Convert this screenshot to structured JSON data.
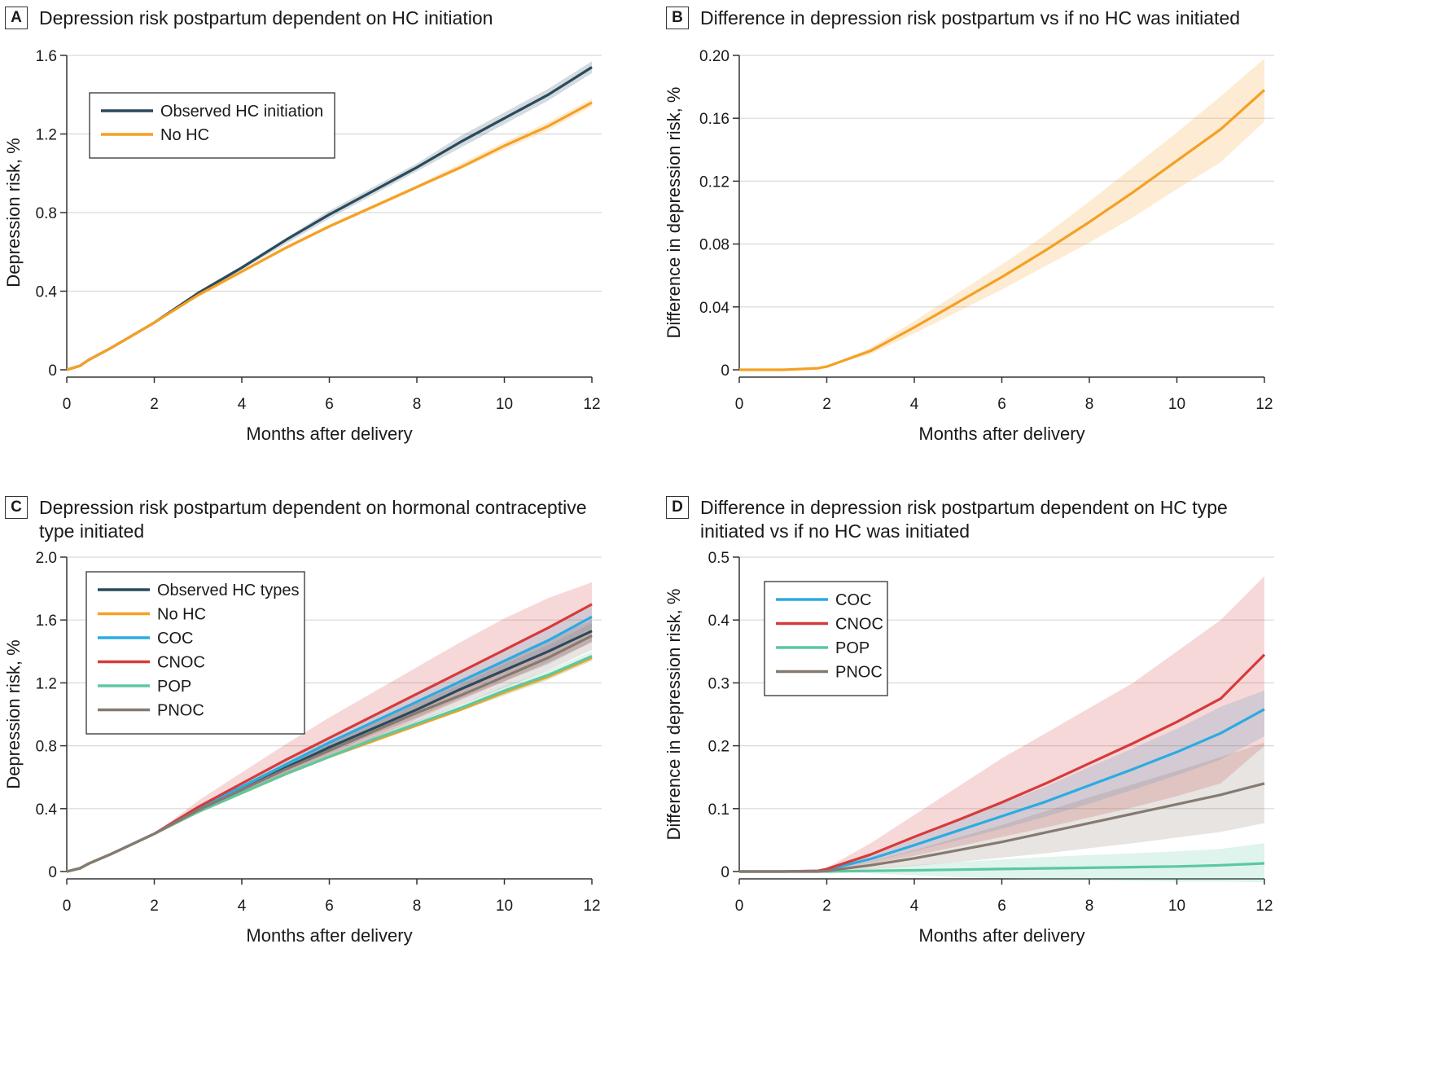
{
  "colors": {
    "observed": "#2a4a5c",
    "no_hc": "#f5a023",
    "coc": "#2aabe2",
    "cnoc": "#d63b3b",
    "pop": "#5cc8a0",
    "pnoc": "#857a70",
    "grid": "#d9d9d9"
  },
  "chart_data": [
    {
      "panel": "A",
      "type": "line",
      "title": "Depression risk postpartum dependent on HC initiation",
      "xlabel": "Months after delivery",
      "ylabel": "Depression risk, %",
      "xlim": [
        0,
        12
      ],
      "ylim": [
        0,
        1.6
      ],
      "xticks": [
        0,
        2,
        4,
        6,
        8,
        10,
        12
      ],
      "yticks": [
        0,
        0.4,
        0.8,
        1.2,
        1.6
      ],
      "ytick_labels": [
        "0",
        "0.4",
        "0.8",
        "1.2",
        "1.6"
      ],
      "grid": true,
      "legend_position": "top-left",
      "x": [
        0,
        0.3,
        0.5,
        1,
        2,
        3,
        4,
        5,
        6,
        7,
        8,
        9,
        10,
        11,
        12
      ],
      "series": [
        {
          "name": "Observed HC initiation",
          "color_key": "observed",
          "values": [
            0,
            0.02,
            0.05,
            0.11,
            0.24,
            0.39,
            0.52,
            0.66,
            0.79,
            0.91,
            1.03,
            1.16,
            1.28,
            1.4,
            1.54
          ],
          "ci_low": [
            0,
            0.02,
            0.05,
            0.11,
            0.24,
            0.38,
            0.51,
            0.64,
            0.77,
            0.89,
            1.01,
            1.13,
            1.25,
            1.37,
            1.51
          ],
          "ci_high": [
            0,
            0.02,
            0.05,
            0.11,
            0.24,
            0.4,
            0.53,
            0.67,
            0.81,
            0.93,
            1.05,
            1.19,
            1.31,
            1.43,
            1.57
          ]
        },
        {
          "name": "No HC",
          "color_key": "no_hc",
          "values": [
            0,
            0.02,
            0.05,
            0.11,
            0.24,
            0.38,
            0.5,
            0.62,
            0.73,
            0.83,
            0.93,
            1.03,
            1.14,
            1.24,
            1.36
          ],
          "ci_low": [
            0,
            0.02,
            0.05,
            0.11,
            0.24,
            0.37,
            0.49,
            0.61,
            0.72,
            0.82,
            0.92,
            1.02,
            1.12,
            1.22,
            1.34
          ],
          "ci_high": [
            0,
            0.02,
            0.05,
            0.11,
            0.24,
            0.39,
            0.51,
            0.63,
            0.74,
            0.84,
            0.94,
            1.05,
            1.16,
            1.26,
            1.38
          ]
        }
      ]
    },
    {
      "panel": "B",
      "type": "line",
      "title": "Difference in depression risk postpartum vs if no HC was initiated",
      "xlabel": "Months after delivery",
      "ylabel": "Difference in depression risk, %",
      "xlim": [
        0,
        12
      ],
      "ylim": [
        0,
        0.2
      ],
      "xticks": [
        0,
        2,
        4,
        6,
        8,
        10,
        12
      ],
      "yticks": [
        0,
        0.04,
        0.08,
        0.12,
        0.16,
        0.2
      ],
      "ytick_labels": [
        "0",
        "0.04",
        "0.08",
        "0.12",
        "0.16",
        "0.20"
      ],
      "grid": true,
      "x": [
        0,
        1,
        1.8,
        2,
        3,
        4,
        5,
        6,
        7,
        8,
        9,
        10,
        11,
        12
      ],
      "series": [
        {
          "name": "",
          "color_key": "no_hc",
          "values": [
            0,
            0,
            0.001,
            0.002,
            0.012,
            0.027,
            0.043,
            0.059,
            0.076,
            0.094,
            0.113,
            0.133,
            0.153,
            0.178
          ],
          "ci_low": [
            0,
            0,
            0.001,
            0.002,
            0.01,
            0.023,
            0.037,
            0.051,
            0.066,
            0.081,
            0.097,
            0.115,
            0.132,
            0.158
          ],
          "ci_high": [
            0,
            0,
            0.001,
            0.002,
            0.014,
            0.031,
            0.049,
            0.067,
            0.086,
            0.107,
            0.129,
            0.151,
            0.174,
            0.198
          ]
        }
      ]
    },
    {
      "panel": "C",
      "type": "line",
      "title": "Depression risk postpartum dependent on hormonal contraceptive\ntype initiated",
      "xlabel": "Months after delivery",
      "ylabel": "Depression risk, %",
      "xlim": [
        0,
        12
      ],
      "ylim": [
        0,
        2.0
      ],
      "xticks": [
        0,
        2,
        4,
        6,
        8,
        10,
        12
      ],
      "yticks": [
        0,
        0.4,
        0.8,
        1.2,
        1.6,
        2.0
      ],
      "ytick_labels": [
        "0",
        "0.4",
        "0.8",
        "1.2",
        "1.6",
        "2.0"
      ],
      "grid": true,
      "legend_position": "top-left",
      "x": [
        0,
        0.3,
        0.5,
        1,
        2,
        3,
        4,
        5,
        6,
        7,
        8,
        9,
        10,
        11,
        12
      ],
      "series": [
        {
          "name": "Observed HC types",
          "color_key": "observed",
          "values": [
            0,
            0.02,
            0.05,
            0.11,
            0.24,
            0.39,
            0.52,
            0.66,
            0.79,
            0.91,
            1.03,
            1.16,
            1.28,
            1.4,
            1.53
          ],
          "ci_low": [
            0,
            0.02,
            0.05,
            0.11,
            0.24,
            0.37,
            0.5,
            0.63,
            0.75,
            0.87,
            0.98,
            1.1,
            1.21,
            1.32,
            1.46
          ],
          "ci_high": [
            0,
            0.02,
            0.05,
            0.11,
            0.24,
            0.41,
            0.54,
            0.69,
            0.83,
            0.95,
            1.08,
            1.22,
            1.35,
            1.48,
            1.6
          ]
        },
        {
          "name": "No HC",
          "color_key": "no_hc",
          "values": [
            0,
            0.02,
            0.05,
            0.11,
            0.24,
            0.38,
            0.5,
            0.62,
            0.73,
            0.83,
            0.93,
            1.03,
            1.14,
            1.24,
            1.36
          ],
          "ci_low": [
            0,
            0.02,
            0.05,
            0.11,
            0.24,
            0.37,
            0.49,
            0.61,
            0.72,
            0.82,
            0.92,
            1.02,
            1.12,
            1.22,
            1.34
          ],
          "ci_high": [
            0,
            0.02,
            0.05,
            0.11,
            0.24,
            0.39,
            0.51,
            0.63,
            0.74,
            0.84,
            0.94,
            1.05,
            1.16,
            1.26,
            1.38
          ]
        },
        {
          "name": "COC",
          "color_key": "coc",
          "values": [
            0,
            0.02,
            0.05,
            0.11,
            0.24,
            0.4,
            0.54,
            0.68,
            0.82,
            0.95,
            1.08,
            1.21,
            1.34,
            1.47,
            1.62
          ],
          "ci_low": [
            0,
            0.02,
            0.05,
            0.11,
            0.24,
            0.38,
            0.52,
            0.65,
            0.78,
            0.91,
            1.03,
            1.16,
            1.28,
            1.4,
            1.55
          ],
          "ci_high": [
            0,
            0.02,
            0.05,
            0.11,
            0.24,
            0.42,
            0.56,
            0.71,
            0.86,
            0.99,
            1.13,
            1.26,
            1.4,
            1.54,
            1.69
          ]
        },
        {
          "name": "CNOC",
          "color_key": "cnoc",
          "values": [
            0,
            0.02,
            0.05,
            0.11,
            0.24,
            0.41,
            0.56,
            0.71,
            0.85,
            0.99,
            1.13,
            1.27,
            1.41,
            1.55,
            1.7
          ],
          "ci_low": [
            0,
            0.02,
            0.05,
            0.11,
            0.24,
            0.37,
            0.49,
            0.61,
            0.73,
            0.85,
            0.97,
            1.09,
            1.21,
            1.33,
            1.46
          ],
          "ci_high": [
            0,
            0.02,
            0.05,
            0.11,
            0.24,
            0.45,
            0.63,
            0.81,
            0.98,
            1.14,
            1.3,
            1.46,
            1.61,
            1.74,
            1.84
          ]
        },
        {
          "name": "POP",
          "color_key": "pop",
          "values": [
            0,
            0.02,
            0.05,
            0.11,
            0.24,
            0.38,
            0.5,
            0.62,
            0.73,
            0.84,
            0.94,
            1.04,
            1.15,
            1.25,
            1.37
          ],
          "ci_low": [
            0,
            0.02,
            0.05,
            0.11,
            0.24,
            0.37,
            0.49,
            0.61,
            0.72,
            0.82,
            0.92,
            1.02,
            1.12,
            1.22,
            1.34
          ],
          "ci_high": [
            0,
            0.02,
            0.05,
            0.11,
            0.24,
            0.39,
            0.51,
            0.63,
            0.75,
            0.86,
            0.96,
            1.06,
            1.18,
            1.28,
            1.4
          ]
        },
        {
          "name": "PNOC",
          "color_key": "pnoc",
          "values": [
            0,
            0.02,
            0.05,
            0.11,
            0.24,
            0.39,
            0.52,
            0.65,
            0.77,
            0.89,
            1.01,
            1.12,
            1.24,
            1.36,
            1.5
          ],
          "ci_low": [
            0,
            0.02,
            0.05,
            0.11,
            0.24,
            0.37,
            0.5,
            0.62,
            0.73,
            0.84,
            0.95,
            1.06,
            1.17,
            1.28,
            1.41
          ],
          "ci_high": [
            0,
            0.02,
            0.05,
            0.11,
            0.24,
            0.41,
            0.54,
            0.68,
            0.81,
            0.94,
            1.07,
            1.19,
            1.32,
            1.44,
            1.58
          ]
        }
      ]
    },
    {
      "panel": "D",
      "type": "line",
      "title": "Difference in depression risk postpartum dependent on HC type\ninitiated vs if no HC was initiated",
      "xlabel": "Months after delivery",
      "ylabel": "Difference in depression risk, %",
      "xlim": [
        0,
        12
      ],
      "ylim": [
        0,
        0.5
      ],
      "xticks": [
        0,
        2,
        4,
        6,
        8,
        10,
        12
      ],
      "yticks": [
        0,
        0.1,
        0.2,
        0.3,
        0.4,
        0.5
      ],
      "ytick_labels": [
        "0",
        "0.1",
        "0.2",
        "0.3",
        "0.4",
        "0.5"
      ],
      "grid": true,
      "legend_position": "top-left",
      "x": [
        0,
        1,
        1.8,
        2,
        3,
        4,
        5,
        6,
        7,
        8,
        9,
        10,
        11,
        12
      ],
      "series": [
        {
          "name": "COC",
          "color_key": "coc",
          "values": [
            0,
            0,
            0.001,
            0.003,
            0.02,
            0.042,
            0.065,
            0.088,
            0.111,
            0.137,
            0.163,
            0.19,
            0.22,
            0.258
          ],
          "ci_low": [
            0,
            0,
            0.001,
            0.002,
            0.015,
            0.032,
            0.05,
            0.068,
            0.087,
            0.108,
            0.13,
            0.153,
            0.178,
            0.215
          ],
          "ci_high": [
            0,
            0,
            0.001,
            0.004,
            0.025,
            0.052,
            0.08,
            0.108,
            0.135,
            0.166,
            0.196,
            0.227,
            0.262,
            0.288
          ]
        },
        {
          "name": "CNOC",
          "color_key": "cnoc",
          "values": [
            0,
            0,
            0.001,
            0.004,
            0.027,
            0.055,
            0.082,
            0.11,
            0.14,
            0.172,
            0.204,
            0.238,
            0.275,
            0.345
          ],
          "ci_low": [
            0,
            0,
            0.001,
            0.002,
            0.012,
            0.025,
            0.04,
            0.055,
            0.07,
            0.086,
            0.102,
            0.12,
            0.14,
            0.2
          ],
          "ci_high": [
            0,
            0,
            0.001,
            0.006,
            0.045,
            0.09,
            0.135,
            0.18,
            0.22,
            0.26,
            0.3,
            0.35,
            0.4,
            0.47
          ]
        },
        {
          "name": "POP",
          "color_key": "pop",
          "values": [
            0,
            0,
            0,
            0,
            0.001,
            0.002,
            0.003,
            0.004,
            0.005,
            0.006,
            0.007,
            0.008,
            0.01,
            0.013
          ],
          "ci_low": [
            0,
            0,
            0,
            0,
            -0.003,
            -0.006,
            -0.009,
            -0.011,
            -0.013,
            -0.014,
            -0.015,
            -0.016,
            -0.016,
            -0.017
          ],
          "ci_high": [
            0,
            0,
            0,
            0,
            0.005,
            0.01,
            0.015,
            0.019,
            0.023,
            0.026,
            0.029,
            0.032,
            0.036,
            0.045
          ]
        },
        {
          "name": "PNOC",
          "color_key": "pnoc",
          "values": [
            0,
            0,
            0,
            0.001,
            0.01,
            0.021,
            0.034,
            0.047,
            0.062,
            0.077,
            0.092,
            0.107,
            0.122,
            0.14
          ],
          "ci_low": [
            0,
            0,
            0,
            0,
            0.004,
            0.009,
            0.015,
            0.022,
            0.029,
            0.037,
            0.045,
            0.054,
            0.063,
            0.077
          ],
          "ci_high": [
            0,
            0,
            0,
            0.002,
            0.016,
            0.034,
            0.054,
            0.074,
            0.096,
            0.118,
            0.139,
            0.16,
            0.182,
            0.205
          ]
        }
      ]
    }
  ]
}
